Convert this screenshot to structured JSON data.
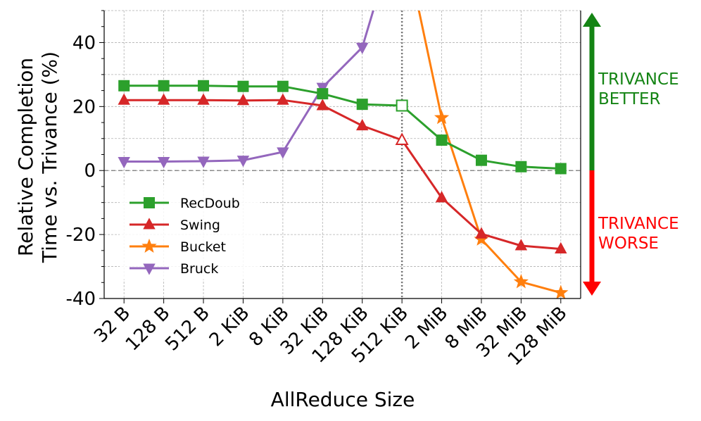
{
  "chart_data": {
    "type": "line",
    "xlabel": "AllReduce Size",
    "ylabel_lines": [
      "Relative Completion",
      "Time vs. Trivance (%)"
    ],
    "categories": [
      "32 B",
      "128 B",
      "512 B",
      "2 KiB",
      "8 KiB",
      "32 KiB",
      "128 KiB",
      "512 KiB",
      "2 MiB",
      "8 MiB",
      "32 MiB",
      "128 MiB"
    ],
    "ylim": [
      -40,
      50
    ],
    "yticks": [
      -40,
      -20,
      0,
      20,
      40
    ],
    "grid": true,
    "legend_position": "center-left",
    "vertical_reference_category": "512 KiB",
    "series": [
      {
        "name": "RecDoub",
        "color": "#2ca02c",
        "marker": "square",
        "values": [
          26.5,
          26.5,
          26.5,
          26.3,
          26.3,
          24.0,
          20.7,
          20.3,
          9.5,
          3.2,
          1.2,
          0.6
        ],
        "hollow_index": 7
      },
      {
        "name": "Swing",
        "color": "#d62728",
        "marker": "triangle-up",
        "values": [
          22.0,
          22.0,
          22.0,
          21.9,
          22.0,
          20.3,
          14.0,
          9.5,
          -8.5,
          -19.8,
          -23.5,
          -24.5
        ],
        "hollow_index": 7
      },
      {
        "name": "Bucket",
        "color": "#ff7f0e",
        "marker": "star",
        "values": [
          null,
          null,
          null,
          null,
          null,
          null,
          null,
          75.0,
          16.5,
          -21.5,
          -34.8,
          -38.2
        ],
        "hollow_index": -1
      },
      {
        "name": "Bruck",
        "color": "#9467bd",
        "marker": "triangle-down",
        "values": [
          2.8,
          2.8,
          2.9,
          3.2,
          5.8,
          26.0,
          38.5,
          80.0,
          null,
          null,
          null,
          null
        ],
        "hollow_index": -1
      }
    ]
  },
  "annotations": {
    "better_lines": [
      "TRIVANCE",
      "BETTER"
    ],
    "worse_lines": [
      "TRIVANCE",
      "WORSE"
    ],
    "better_color": "#148414",
    "worse_color": "#ff0000"
  }
}
